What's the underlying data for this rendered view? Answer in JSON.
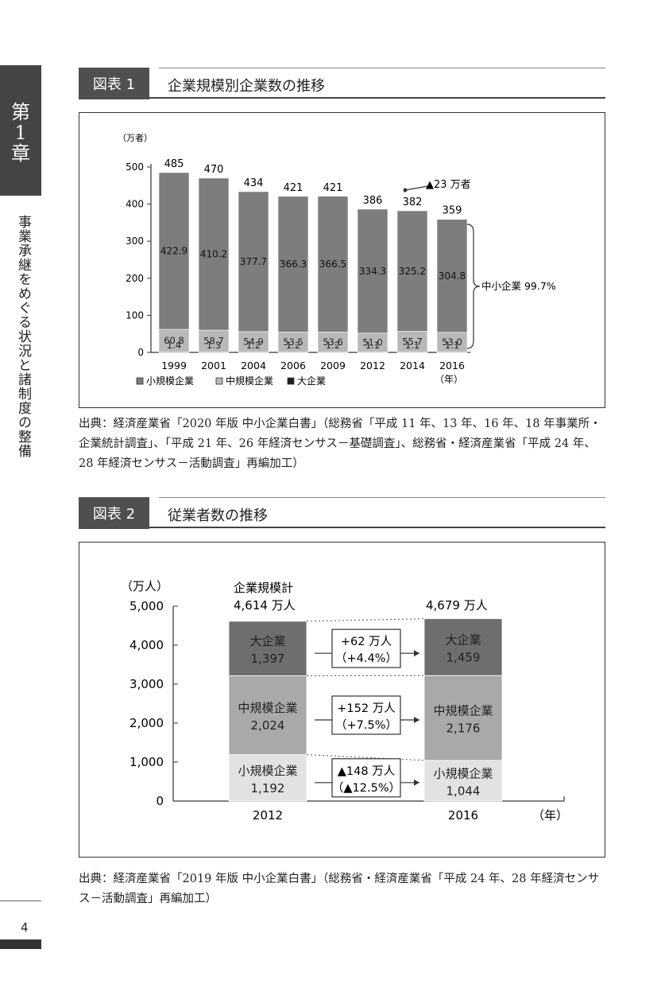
{
  "side": {
    "chapter_chars": [
      "第",
      "1",
      "章"
    ],
    "vertical_title": "事業承継をめぐる状況と諸制度の整備"
  },
  "figure1": {
    "num": "図表 1",
    "title": "企業規模別企業数の推移",
    "unit": "（万者）",
    "decrease_label": "▲23 万者",
    "brace_label": "中小企業 99.7%",
    "year_suffix": "（年）",
    "legend": [
      "小規模企業",
      "中規模企業",
      "大企業"
    ],
    "source_label": "出典：",
    "source_text": "経済産業省「2020 年版 中小企業白書」（総務省「平成 11 年、13 年、16 年、18 年事業所・企業統計調査」、「平成 21 年、26 年経済センサス－基礎調査」、総務省・経済産業省「平成 24 年、28 年経済センサス－活動調査」再編加工）"
  },
  "figure2": {
    "num": "図表 2",
    "title": "従業者数の推移",
    "unit": "（万人）",
    "total_caption": "企業規模計",
    "total_2012": "4,614 万人",
    "total_2016": "4,679 万人",
    "year_suffix": "（年）",
    "source_label": "出典：",
    "source_text": "経済産業省「2019 年版 中小企業白書」（総務省・経済産業省「平成 24 年、28 年経済センサス－活動調査」再編加工）"
  },
  "page_number": "4",
  "chart_data": [
    {
      "type": "bar",
      "stacked": true,
      "categories": [
        "1999",
        "2001",
        "2004",
        "2006",
        "2009",
        "2012",
        "2014",
        "2016"
      ],
      "series": [
        {
          "name": "小規模企業",
          "values": [
            422.9,
            410.2,
            377.7,
            366.3,
            366.5,
            334.3,
            325.2,
            304.8
          ],
          "color": "#7d7d7d"
        },
        {
          "name": "中規模企業",
          "values": [
            60.8,
            58.7,
            54.9,
            53.5,
            53.6,
            51.0,
            55.7,
            53.0
          ],
          "color": "#b8b8b8"
        },
        {
          "name": "大企業",
          "values": [
            1.4,
            1.3,
            1.2,
            1.2,
            1.2,
            1.1,
            1.1,
            1.1
          ],
          "color": "#1e1e1e"
        }
      ],
      "totals": [
        485,
        470,
        434,
        421,
        421,
        386,
        382,
        359
      ],
      "ylim": [
        0,
        500
      ],
      "yticks": [
        0,
        100,
        200,
        300,
        400,
        500
      ]
    },
    {
      "type": "bar",
      "stacked": true,
      "categories": [
        "2012",
        "2016"
      ],
      "series": [
        {
          "name": "小規模企業",
          "values": [
            1192,
            1044
          ],
          "labels": [
            "1,192",
            "1,044"
          ],
          "color": "#e2e2e2"
        },
        {
          "name": "中規模企業",
          "values": [
            2024,
            2176
          ],
          "labels": [
            "2,024",
            "2,176"
          ],
          "color": "#a9a9a9"
        },
        {
          "name": "大企業",
          "values": [
            1397,
            1459
          ],
          "labels": [
            "1,397",
            "1,459"
          ],
          "color": "#6e6e6e"
        }
      ],
      "changes": [
        {
          "amount": "▲148 万人",
          "pct": "（▲12.5%）"
        },
        {
          "amount": "+152 万人",
          "pct": "（+7.5%）"
        },
        {
          "amount": "+62 万人",
          "pct": "（+4.4%）"
        }
      ],
      "ylim": [
        0,
        5000
      ],
      "yticks": [
        "0",
        "1,000",
        "2,000",
        "3,000",
        "4,000",
        "5,000"
      ]
    }
  ]
}
